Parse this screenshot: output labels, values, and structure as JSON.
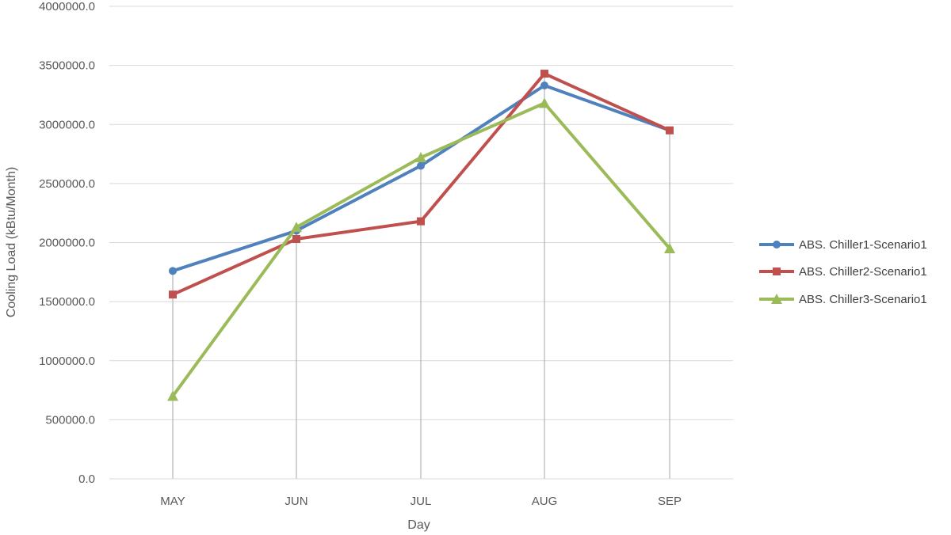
{
  "chart_data": {
    "type": "line",
    "title": "",
    "xlabel": "Day",
    "ylabel": "Cooling Load (kBtu/Month)",
    "categories": [
      "MAY",
      "JUN",
      "JUL",
      "AUG",
      "SEP"
    ],
    "ylim": [
      0,
      4000000
    ],
    "yticks": [
      "0.0",
      "500000.0",
      "1000000.0",
      "1500000.0",
      "2000000.0",
      "2500000.0",
      "3000000.0",
      "3500000.0",
      "4000000.0"
    ],
    "grid": "horizontal",
    "drop_lines": true,
    "legend_position": "right",
    "series": [
      {
        "name": "ABS. Chiller1-Scenario1",
        "marker": "circle",
        "color": "#4F81BD",
        "values": [
          1760000,
          2100000,
          2650000,
          3330000,
          2950000
        ]
      },
      {
        "name": "ABS. Chiller2-Scenario1",
        "marker": "square",
        "color": "#C0504D",
        "values": [
          1560000,
          2030000,
          2180000,
          3430000,
          2950000
        ]
      },
      {
        "name": "ABS. Chiller3-Scenario1",
        "marker": "triangle",
        "color": "#9BBB59",
        "values": [
          700000,
          2130000,
          2720000,
          3180000,
          1950000
        ]
      }
    ]
  }
}
